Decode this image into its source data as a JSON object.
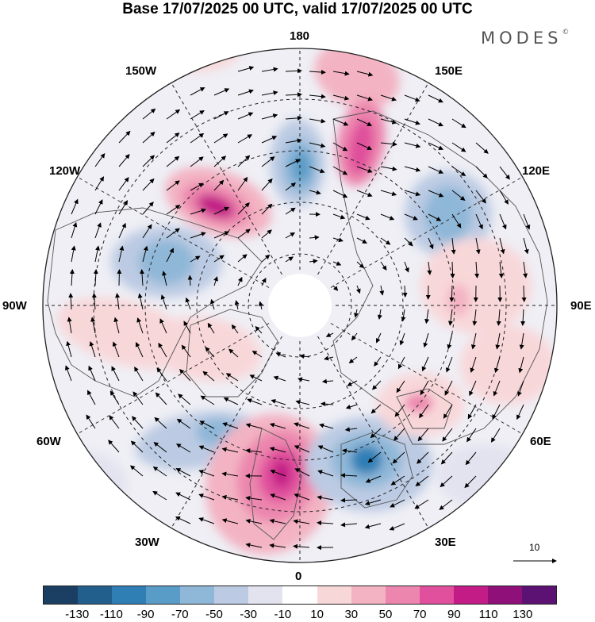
{
  "title": "Base 17/07/2025 00 UTC, valid 17/07/2025 00 UTC",
  "brand": "MODES",
  "brand_mark": "©",
  "map": {
    "projection": "north polar stereographic",
    "longitude_labels": {
      "top": "180",
      "top_left": "150W",
      "top_right": "150E",
      "upper_left": "120W",
      "upper_right": "120E",
      "left": "90W",
      "right": "90E",
      "lower_left": "60W",
      "lower_right": "60E",
      "bottom_left": "30W",
      "bottom_right": "30E",
      "bottom": "0"
    },
    "vector_reference": "10"
  },
  "colorbar": {
    "colors": [
      "#1b3f63",
      "#235f8c",
      "#2f7fb5",
      "#5a9cc8",
      "#8fb7d8",
      "#bccbe3",
      "#e3e3f0",
      "#ffffff",
      "#f8d7d9",
      "#f3b3c3",
      "#ec86ae",
      "#e0509c",
      "#c31c86",
      "#8f1079",
      "#5b1272"
    ],
    "tick_labels": [
      "-130",
      "-110",
      "-90",
      "-70",
      "-50",
      "-30",
      "-10",
      "10",
      "30",
      "50",
      "70",
      "90",
      "110",
      "130"
    ]
  }
}
